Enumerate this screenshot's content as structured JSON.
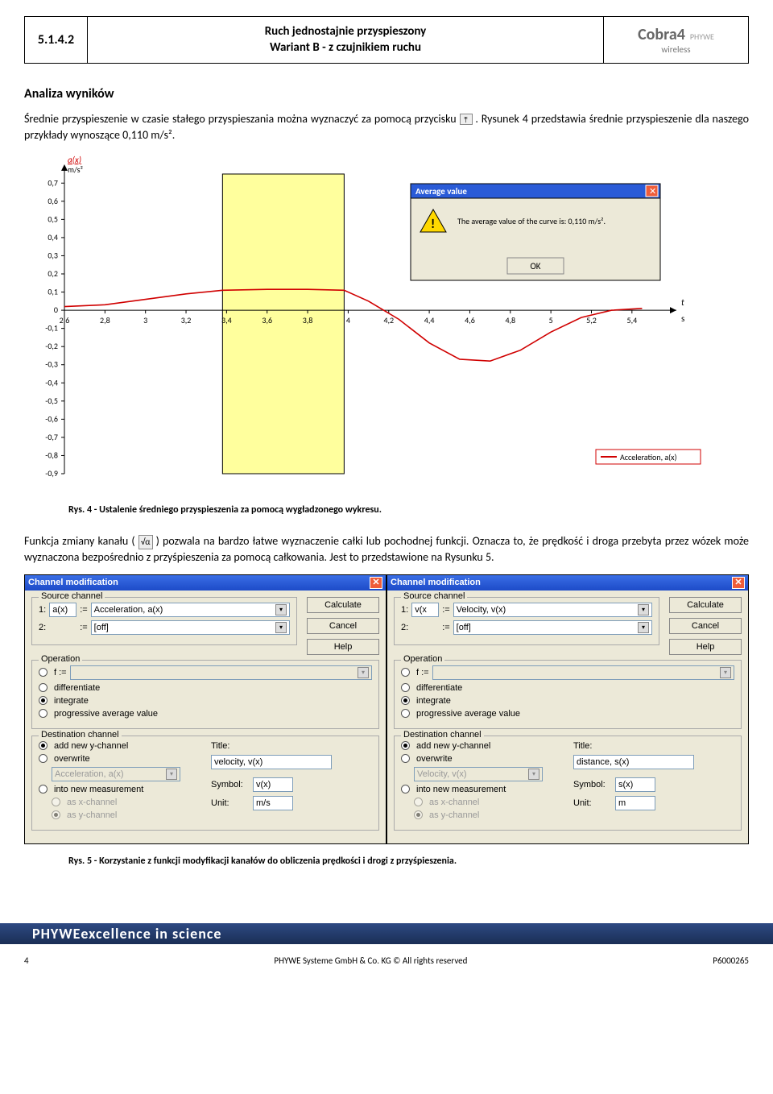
{
  "header": {
    "number": "5.1.4.2",
    "title_line1": "Ruch jednostajnie przyspieszony",
    "title_line2": "Wariant B - z czujnikiem ruchu",
    "logo_brand": "Cobra",
    "logo_four": "4",
    "logo_side": "PHYWE",
    "logo_sub": "wireless"
  },
  "analysis": {
    "heading": "Analiza wyników",
    "para1a": "Średnie przyspieszenie w czasie stałego przyspieszania można wyznaczyć za pomocą przycisku ",
    "para1b": ". Rysunek 4 przedstawia średnie przyspieszenie dla naszego przykłady wynoszące 0,110 m/s².",
    "icon1_glyph": "⤒"
  },
  "chart": {
    "ylabel_top": "a(x)",
    "ylabel_unit": "m/s²",
    "xlabel_unit": "t",
    "xlabel_sub": "s",
    "y_ticks": [
      "0,7",
      "0,6",
      "0,5",
      "0,4",
      "0,3",
      "0,2",
      "0,1",
      "0",
      "-0,1",
      "-0,2",
      "-0,3",
      "-0,4",
      "-0,5",
      "-0,6",
      "-0,7",
      "-0,8",
      "-0,9"
    ],
    "x_ticks": [
      "2,6",
      "2,8",
      "3",
      "3,2",
      "3,4",
      "3,6",
      "3,8",
      "4",
      "4,2",
      "4,4",
      "4,6",
      "4,8",
      "5",
      "5,2",
      "5,4"
    ],
    "legend_label": "Acceleration, a(x)",
    "legend_color": "#d00000",
    "highlight_fill": "#ffff9d",
    "highlight_xrange": [
      3.38,
      3.98
    ],
    "curve_color": "#d00000",
    "curve_points": [
      [
        2.6,
        0.02
      ],
      [
        2.8,
        0.03
      ],
      [
        3.0,
        0.06
      ],
      [
        3.2,
        0.09
      ],
      [
        3.38,
        0.11
      ],
      [
        3.6,
        0.115
      ],
      [
        3.8,
        0.115
      ],
      [
        3.98,
        0.11
      ],
      [
        4.1,
        0.05
      ],
      [
        4.25,
        -0.05
      ],
      [
        4.4,
        -0.18
      ],
      [
        4.55,
        -0.27
      ],
      [
        4.7,
        -0.28
      ],
      [
        4.85,
        -0.22
      ],
      [
        5.0,
        -0.12
      ],
      [
        5.15,
        -0.04
      ],
      [
        5.3,
        0.0
      ],
      [
        5.45,
        0.01
      ]
    ],
    "axis_xmin": 2.6,
    "axis_xmax": 5.5,
    "axis_ymin": -0.9,
    "axis_ymax": 0.75
  },
  "avg_dialog": {
    "title": "Average value",
    "message": "The average value of the curve is: 0,110 m/s².",
    "ok": "OK"
  },
  "caption4": "Rys. 4 - Ustalenie średniego przyspieszenia za pomocą wygładzonego wykresu.",
  "para2": {
    "a": "Funkcja zmiany kanału (",
    "icon": "√α",
    "b": ") pozwala na bardzo łatwe wyznaczenie całki lub pochodnej funkcji. Oznacza to, że prędkość i droga przebyta przez wózek może wyznaczona bezpośrednio z przyśpieszenia za pomocą całkowania. Jest to przedstawione na Rysunku 5."
  },
  "dlg_common": {
    "title": "Channel modification",
    "source_legend": "Source channel",
    "operation_legend": "Operation",
    "destination_legend": "Destination channel",
    "src1_label": "1:",
    "src2_label": "2:",
    "assign": ":=",
    "off": "[off]",
    "calc": "Calculate",
    "cancel": "Cancel",
    "help": "Help",
    "op_f": "f :=",
    "op_diff": "differentiate",
    "op_int": "integrate",
    "op_avg": "progressive average value",
    "dest_add": "add new y-channel",
    "dest_over": "overwrite",
    "dest_into": "into new measurement",
    "dest_asx": "as x-channel",
    "dest_asy": "as y-channel",
    "title_lbl": "Title:",
    "symbol_lbl": "Symbol:",
    "unit_lbl": "Unit:"
  },
  "dlg_left": {
    "src1_var": "a(x)",
    "src1_name": "Acceleration, a(x)",
    "over_val": "Acceleration, a(x)",
    "title_val": "velocity, v(x)",
    "symbol_val": "v(x)",
    "unit_val": "m/s"
  },
  "dlg_right": {
    "src1_var": "v(x",
    "src1_name": "Velocity, v(x)",
    "over_val": "Velocity, v(x)",
    "title_val": "distance, s(x)",
    "symbol_val": "s(x)",
    "unit_val": "m"
  },
  "caption5": "Rys. 5 - Korzystanie z funkcji modyfikacji kanałów do obliczenia prędkości i drogi z przyśpieszenia.",
  "footer": {
    "brand": "PHYWE",
    "tagline": "excellence in science",
    "page": "4",
    "center": "PHYWE Systeme GmbH & Co. KG © All rights reserved",
    "right": "P6000265"
  }
}
